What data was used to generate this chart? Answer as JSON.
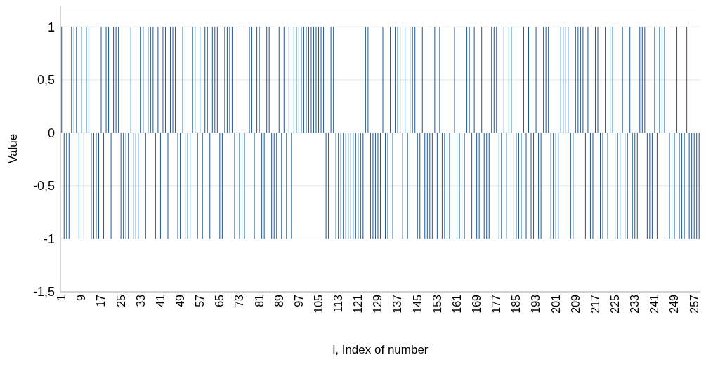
{
  "chart_data": {
    "type": "bar",
    "xlabel": "i, Index of number",
    "ylabel": "Value",
    "color": "#1f5a96",
    "categories": [
      "1",
      null,
      null,
      null,
      null,
      null,
      null,
      null,
      "9",
      null,
      null,
      null,
      null,
      null,
      null,
      null,
      "17",
      null,
      null,
      null,
      null,
      null,
      null,
      null,
      "25",
      null,
      null,
      null,
      null,
      null,
      null,
      null,
      "33",
      null,
      null,
      null,
      null,
      null,
      null,
      null,
      "41",
      null,
      null,
      null,
      null,
      null,
      null,
      null,
      "49",
      null,
      null,
      null,
      null,
      null,
      null,
      null,
      "57",
      null,
      null,
      null,
      null,
      null,
      null,
      null,
      "65",
      null,
      null,
      null,
      null,
      null,
      null,
      null,
      "73",
      null,
      null,
      null,
      null,
      null,
      null,
      null,
      "81",
      null,
      null,
      null,
      null,
      null,
      null,
      null,
      "89",
      null,
      null,
      null,
      null,
      null,
      null,
      null,
      "97",
      null,
      null,
      null,
      null,
      null,
      null,
      null,
      "105",
      null,
      null,
      null,
      null,
      null,
      null,
      null,
      "113",
      null,
      null,
      null,
      null,
      null,
      null,
      null,
      "121",
      null,
      null,
      null,
      null,
      null,
      null,
      null,
      "129",
      null,
      null,
      null,
      null,
      null,
      null,
      null,
      "137",
      null,
      null,
      null,
      null,
      null,
      null,
      null,
      "145",
      null,
      null,
      null,
      null,
      null,
      null,
      null,
      "153",
      null,
      null,
      null,
      null,
      null,
      null,
      null,
      "161",
      null,
      null,
      null,
      null,
      null,
      null,
      null,
      "169",
      null,
      null,
      null,
      null,
      null,
      null,
      null,
      "177",
      null,
      null,
      null,
      null,
      null,
      null,
      null,
      "185",
      null,
      null,
      null,
      null,
      null,
      null,
      null,
      "193",
      null,
      null,
      null,
      null,
      null,
      null,
      null,
      "201",
      null,
      null,
      null,
      null,
      null,
      null,
      null,
      "209",
      null,
      null,
      null,
      null,
      null,
      null,
      null,
      "217",
      null,
      null,
      null,
      null,
      null,
      null,
      null,
      "225",
      null,
      null,
      null,
      null,
      null,
      null,
      null,
      "233",
      null,
      null,
      null,
      null,
      null,
      null,
      null,
      "241",
      null,
      null,
      null,
      null,
      null,
      null,
      null,
      "249",
      null,
      null,
      null,
      null,
      null,
      null,
      null,
      "257",
      null,
      null
    ],
    "values": [
      1,
      -1,
      -1,
      -1,
      1,
      1,
      1,
      -1,
      1,
      -1,
      1,
      1,
      -1,
      -1,
      -1,
      -1,
      1,
      -1,
      1,
      1,
      -1,
      1,
      1,
      1,
      -1,
      -1,
      -1,
      -1,
      1,
      -1,
      -1,
      -1,
      1,
      1,
      -1,
      1,
      1,
      1,
      -1,
      1,
      -1,
      1,
      1,
      -1,
      1,
      1,
      1,
      -1,
      -1,
      1,
      -1,
      -1,
      -1,
      1,
      1,
      -1,
      1,
      -1,
      1,
      1,
      -1,
      1,
      1,
      1,
      -1,
      -1,
      1,
      1,
      1,
      1,
      -1,
      1,
      -1,
      -1,
      -1,
      1,
      1,
      1,
      -1,
      1,
      1,
      -1,
      -1,
      1,
      1,
      -1,
      -1,
      -1,
      1,
      -1,
      1,
      -1,
      1,
      -1,
      1,
      1,
      1,
      1,
      1,
      1,
      1,
      1,
      1,
      1,
      1,
      1,
      1,
      -1,
      -1,
      1,
      1,
      -1,
      -1,
      -1,
      -1,
      -1,
      -1,
      -1,
      -1,
      -1,
      -1,
      -1,
      -1,
      1,
      1,
      -1,
      -1,
      -1,
      -1,
      -1,
      1,
      -1,
      -1,
      1,
      -1,
      1,
      1,
      1,
      -1,
      1,
      -1,
      1,
      1,
      1,
      -1,
      -1,
      1,
      -1,
      -1,
      -1,
      -1,
      1,
      -1,
      1,
      -1,
      -1,
      -1,
      -1,
      -1,
      1,
      -1,
      -1,
      -1,
      -1,
      1,
      1,
      -1,
      1,
      -1,
      -1,
      1,
      -1,
      -1,
      -1,
      1,
      1,
      1,
      -1,
      -1,
      1,
      -1,
      1,
      1,
      -1,
      -1,
      -1,
      -1,
      1,
      -1,
      1,
      -1,
      -1,
      1,
      -1,
      -1,
      1,
      1,
      1,
      -1,
      -1,
      -1,
      -1,
      1,
      1,
      1,
      1,
      -1,
      -1,
      1,
      1,
      1,
      1,
      -1,
      1,
      -1,
      -1,
      1,
      1,
      -1,
      -1,
      1,
      -1,
      1,
      1,
      -1,
      -1,
      -1,
      1,
      -1,
      -1,
      1,
      -1,
      -1,
      -1,
      1,
      1,
      1,
      -1,
      -1,
      -1,
      1,
      -1,
      1,
      1,
      1,
      -1,
      -1,
      -1,
      -1,
      1,
      -1,
      -1,
      -1,
      1,
      -1,
      -1,
      -1,
      -1,
      -1
    ],
    "ylim": [
      -1.5,
      1.2
    ],
    "yticks": [
      {
        "value": -1.5,
        "label": "-1,5"
      },
      {
        "value": -1,
        "label": "-1"
      },
      {
        "value": -0.5,
        "label": "-0,5"
      },
      0,
      {
        "value": 0.5,
        "label": "0,5"
      },
      1
    ],
    "grid": "y"
  }
}
